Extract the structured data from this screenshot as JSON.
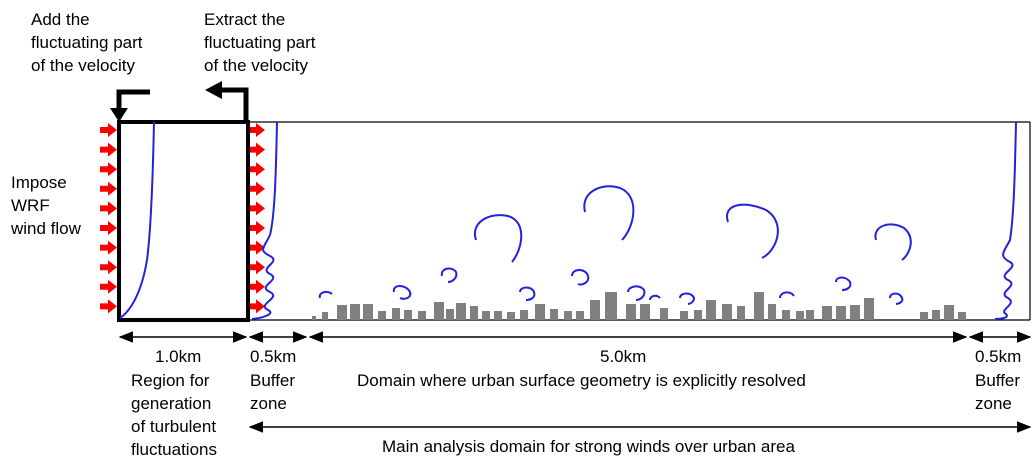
{
  "labels": {
    "add_fluct": [
      "Add the",
      "fluctuating part",
      "of the velocity"
    ],
    "extract_fluct": [
      "Extract the",
      "fluctuating part",
      "of the velocity"
    ],
    "impose_wrf": [
      "Impose",
      "WRF",
      "wind flow"
    ],
    "dist_1km": "1.0km",
    "dist_buffer_left": "0.5km",
    "dist_main": "5.0km",
    "dist_buffer_right": "0.5km",
    "region_generation": [
      "Region for",
      "generation",
      "of turbulent",
      "fluctuations"
    ],
    "buffer_zone_left": [
      "Buffer",
      "zone"
    ],
    "urban_domain": "Domain where urban surface geometry is explicitly resolved",
    "buffer_zone_right": [
      "Buffer",
      "zone"
    ],
    "main_analysis": "Main analysis domain for strong winds over urban area"
  },
  "colors": {
    "arrow_red": "#ff0000",
    "profile_blue": "#2222dd",
    "building_gray": "#808080",
    "frame": "#000000"
  }
}
